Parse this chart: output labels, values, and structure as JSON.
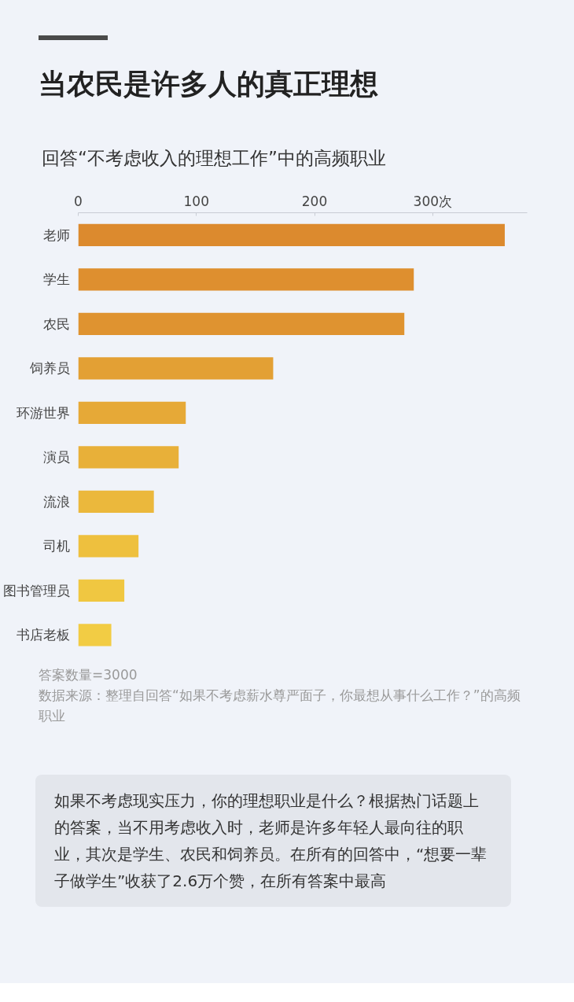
{
  "chart_data": {
    "type": "bar",
    "orientation": "horizontal",
    "title": "当农民是许多人的真正理想",
    "subtitle": "回答“不考虑收入的理想工作”中的高频职业",
    "categories": [
      "老师",
      "学生",
      "农民",
      "饲养员",
      "环游世界",
      "演员",
      "流浪",
      "司机",
      "图书管理员",
      "书店老板"
    ],
    "values": [
      361,
      284,
      276,
      165,
      91,
      85,
      64,
      51,
      39,
      28
    ],
    "colors": [
      "#dc8a2e",
      "#de8f2f",
      "#df9330",
      "#e3a034",
      "#e6a937",
      "#e8b039",
      "#ebb83c",
      "#eec03e",
      "#f0c741",
      "#f2cc44"
    ],
    "xlim": [
      0,
      380
    ],
    "xticks": [
      0,
      100,
      200,
      {
        "value": 300,
        "label": "300次"
      }
    ],
    "grid": false,
    "annotations": [
      "答案数量=3000",
      "数据来源：整理自回答“如果不考虑薪水尊严面子，你最想从事什么工作？”的高频职业",
      "如果不考虑现实压力，你的理想职业是什么？根据热门话题上的答案，当不用考虑收入时，老师是许多年轻人最向往的职业，其次是学生、农民和饲养员。在所有的回答中，“想要一辈子做学生”收获了2.6万个赞，在所有答案中最高"
    ]
  }
}
